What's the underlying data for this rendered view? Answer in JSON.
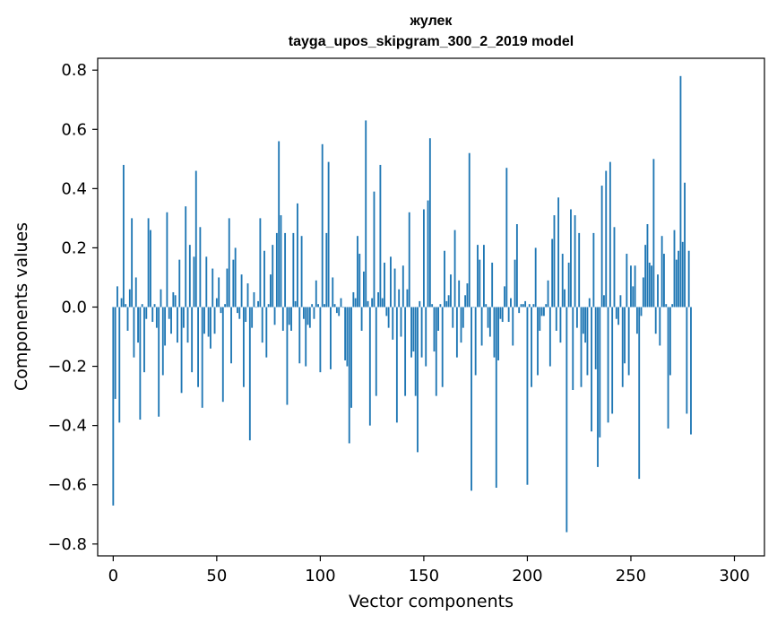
{
  "chart_data": {
    "type": "bar",
    "title_line1": "жулек",
    "title_line2": "tayga_upos_skipgram_300_2_2019 model",
    "xlabel": "Vector components",
    "ylabel": "Components values",
    "xlim": [
      -7.5,
      314.5
    ],
    "ylim": [
      -0.84,
      0.84
    ],
    "xticks": [
      0,
      50,
      100,
      150,
      200,
      250,
      300
    ],
    "xtick_labels": [
      "0",
      "50",
      "100",
      "150",
      "200",
      "250",
      "300"
    ],
    "yticks": [
      0.8,
      0.6,
      0.4,
      0.2,
      0.0,
      -0.2,
      -0.4,
      -0.6,
      -0.8
    ],
    "ytick_labels": [
      "0.8",
      "0.6",
      "0.4",
      "0.2",
      "0.0",
      "−0.2",
      "−0.4",
      "−0.6",
      "−0.8"
    ],
    "bar_color": "#1f77b4",
    "values": [
      -0.67,
      -0.31,
      0.07,
      -0.39,
      0.03,
      0.48,
      0.01,
      -0.08,
      0.06,
      0.3,
      -0.17,
      0.1,
      -0.12,
      -0.38,
      0.01,
      -0.22,
      -0.04,
      0.3,
      0.26,
      -0.05,
      0.01,
      -0.07,
      -0.37,
      0.06,
      -0.23,
      -0.13,
      0.32,
      -0.04,
      -0.09,
      0.05,
      0.04,
      -0.12,
      0.16,
      -0.29,
      -0.07,
      0.34,
      -0.12,
      0.21,
      -0.22,
      0.17,
      0.46,
      -0.27,
      0.27,
      -0.34,
      -0.09,
      0.17,
      -0.1,
      -0.14,
      0.13,
      -0.09,
      0.03,
      0.1,
      -0.02,
      -0.32,
      0.01,
      0.13,
      0.3,
      -0.19,
      0.16,
      0.2,
      -0.02,
      -0.04,
      0.11,
      -0.27,
      -0.05,
      0.08,
      -0.45,
      -0.07,
      0.05,
      0.0,
      0.02,
      0.3,
      -0.12,
      0.19,
      -0.17,
      0.01,
      0.11,
      0.21,
      -0.06,
      0.25,
      0.56,
      0.31,
      -0.08,
      0.25,
      -0.33,
      -0.06,
      -0.08,
      0.25,
      0.02,
      0.35,
      -0.19,
      0.24,
      -0.04,
      -0.2,
      -0.06,
      -0.07,
      0.01,
      -0.04,
      0.09,
      0.01,
      -0.22,
      0.55,
      0.01,
      0.25,
      0.49,
      -0.21,
      0.1,
      0.01,
      -0.02,
      -0.03,
      0.03,
      0.0,
      -0.18,
      -0.2,
      -0.46,
      -0.34,
      0.05,
      0.03,
      0.24,
      0.18,
      -0.08,
      0.12,
      0.63,
      0.02,
      -0.4,
      0.03,
      0.39,
      -0.3,
      0.05,
      0.48,
      0.03,
      0.15,
      -0.03,
      -0.07,
      0.17,
      -0.11,
      0.13,
      -0.39,
      0.06,
      -0.1,
      0.14,
      -0.3,
      0.06,
      0.32,
      -0.17,
      -0.15,
      -0.3,
      -0.49,
      0.02,
      -0.17,
      0.33,
      -0.2,
      0.36,
      0.57,
      0.01,
      -0.15,
      -0.3,
      -0.08,
      0.01,
      -0.27,
      0.19,
      0.02,
      0.04,
      0.11,
      -0.07,
      0.26,
      -0.17,
      0.09,
      -0.12,
      -0.07,
      0.04,
      0.08,
      0.52,
      -0.62,
      0.0,
      -0.23,
      0.21,
      0.16,
      -0.13,
      0.21,
      0.01,
      -0.07,
      -0.1,
      0.15,
      -0.17,
      -0.61,
      -0.18,
      -0.04,
      -0.05,
      0.07,
      0.47,
      -0.05,
      0.03,
      -0.13,
      0.16,
      0.28,
      -0.02,
      0.01,
      0.01,
      0.02,
      -0.6,
      0.01,
      -0.27,
      0.01,
      0.2,
      -0.23,
      -0.08,
      -0.03,
      -0.03,
      0.01,
      0.09,
      -0.2,
      0.23,
      0.31,
      -0.08,
      0.37,
      -0.12,
      0.18,
      0.06,
      -0.76,
      0.15,
      0.33,
      -0.28,
      0.31,
      -0.07,
      0.25,
      -0.27,
      -0.09,
      -0.12,
      -0.23,
      0.03,
      -0.42,
      0.25,
      -0.21,
      -0.54,
      -0.44,
      0.41,
      0.04,
      0.46,
      -0.39,
      0.49,
      -0.36,
      0.27,
      -0.04,
      -0.06,
      0.04,
      -0.27,
      -0.19,
      0.18,
      -0.23,
      0.14,
      0.07,
      0.14,
      -0.09,
      -0.58,
      -0.03,
      0.1,
      0.21,
      0.28,
      0.15,
      0.14,
      0.5,
      -0.09,
      0.11,
      -0.13,
      0.24,
      0.18,
      0.01,
      -0.41,
      -0.23,
      0.01,
      0.26,
      0.16,
      0.19,
      0.78,
      0.22,
      0.42,
      -0.36,
      0.19,
      -0.43
    ]
  }
}
